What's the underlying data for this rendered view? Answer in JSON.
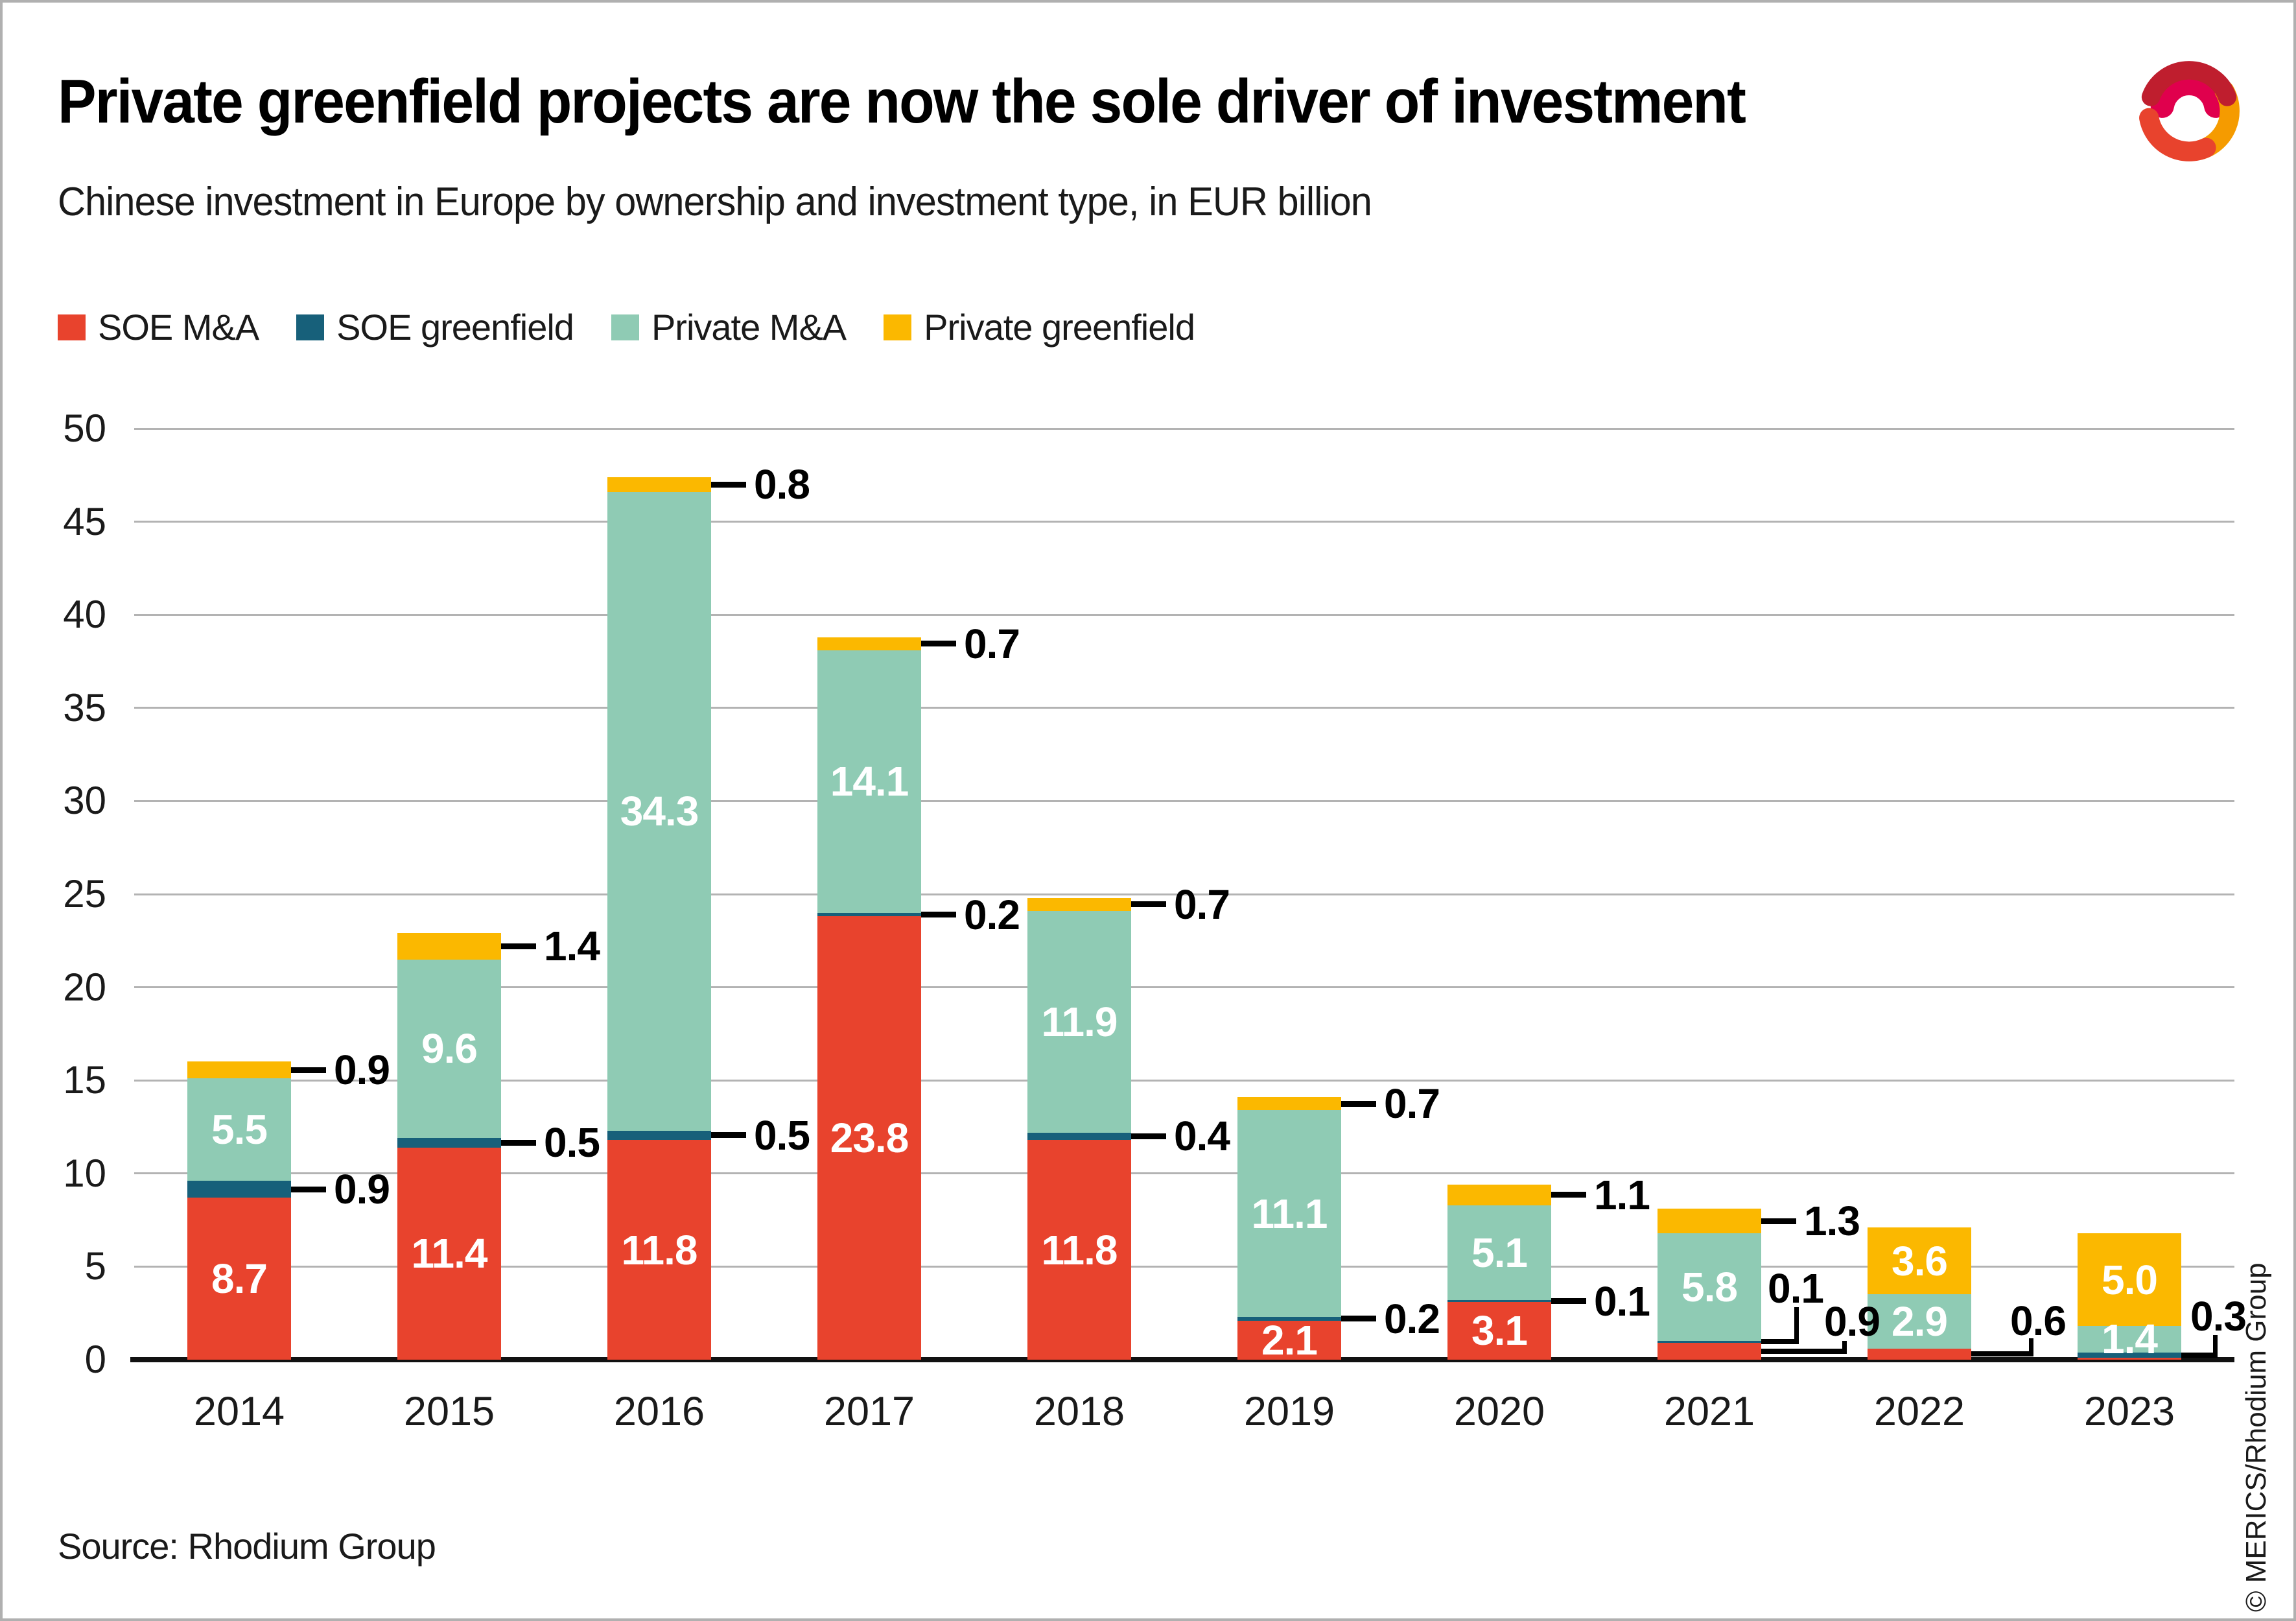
{
  "header": {
    "title": "Private greenfield projects are now the sole driver of investment",
    "subtitle": "Chinese investment in Europe by ownership and investment type, in EUR billion"
  },
  "footer": {
    "source": "Source: Rhodium Group",
    "copyright": "© MERICS/Rhodium Group"
  },
  "colors": {
    "soe_ma": "#e8432d",
    "soe_greenfield": "#17607a",
    "private_ma": "#8fcbb4",
    "private_greenfield": "#fbb800",
    "gridline": "#b3b3b3",
    "axis": "#111111",
    "text": "#1a1a1a"
  },
  "chart_data": {
    "type": "bar",
    "stacked": true,
    "title": "Private greenfield projects are now the sole driver of investment",
    "subtitle": "Chinese investment in Europe by ownership and investment type, in EUR billion",
    "categories": [
      "2014",
      "2015",
      "2016",
      "2017",
      "2018",
      "2019",
      "2020",
      "2021",
      "2022",
      "2023"
    ],
    "series": [
      {
        "name": "SOE M&A",
        "color": "#e8432d",
        "values": [
          8.7,
          11.4,
          11.8,
          23.8,
          11.8,
          2.1,
          3.1,
          0.9,
          0.6,
          0.1
        ],
        "label_mode": [
          "in",
          "in",
          "in",
          "in",
          "in",
          "in",
          "in",
          "elbow",
          "elbow",
          "none"
        ]
      },
      {
        "name": "SOE greenfield",
        "color": "#17607a",
        "values": [
          0.9,
          0.5,
          0.5,
          0.2,
          0.4,
          0.2,
          0.1,
          0.1,
          0,
          0.3
        ],
        "label_mode": [
          "dash",
          "dash",
          "dash",
          "dash",
          "dash",
          "dash",
          "dash",
          "elbow",
          "none",
          "elbow"
        ]
      },
      {
        "name": "Private M&A",
        "color": "#8fcbb4",
        "values": [
          5.5,
          9.6,
          34.3,
          14.1,
          11.9,
          11.1,
          5.1,
          5.8,
          2.9,
          1.4
        ],
        "label_mode": [
          "in",
          "in",
          "in",
          "in",
          "in",
          "in",
          "in",
          "in",
          "in",
          "in"
        ]
      },
      {
        "name": "Private greenfield",
        "color": "#fbb800",
        "values": [
          0.9,
          1.4,
          0.8,
          0.7,
          0.7,
          0.7,
          1.1,
          1.3,
          3.6,
          5.0
        ],
        "label_mode": [
          "dash",
          "dash",
          "dash",
          "dash",
          "dash",
          "dash",
          "dash",
          "dash",
          "in",
          "in"
        ]
      }
    ],
    "ylim": [
      0,
      50
    ],
    "yticks": [
      0,
      5,
      10,
      15,
      20,
      25,
      30,
      35,
      40,
      45,
      50
    ],
    "xlabel": "",
    "ylabel": "",
    "grid": "horizontal",
    "legend_position": "top-left"
  }
}
